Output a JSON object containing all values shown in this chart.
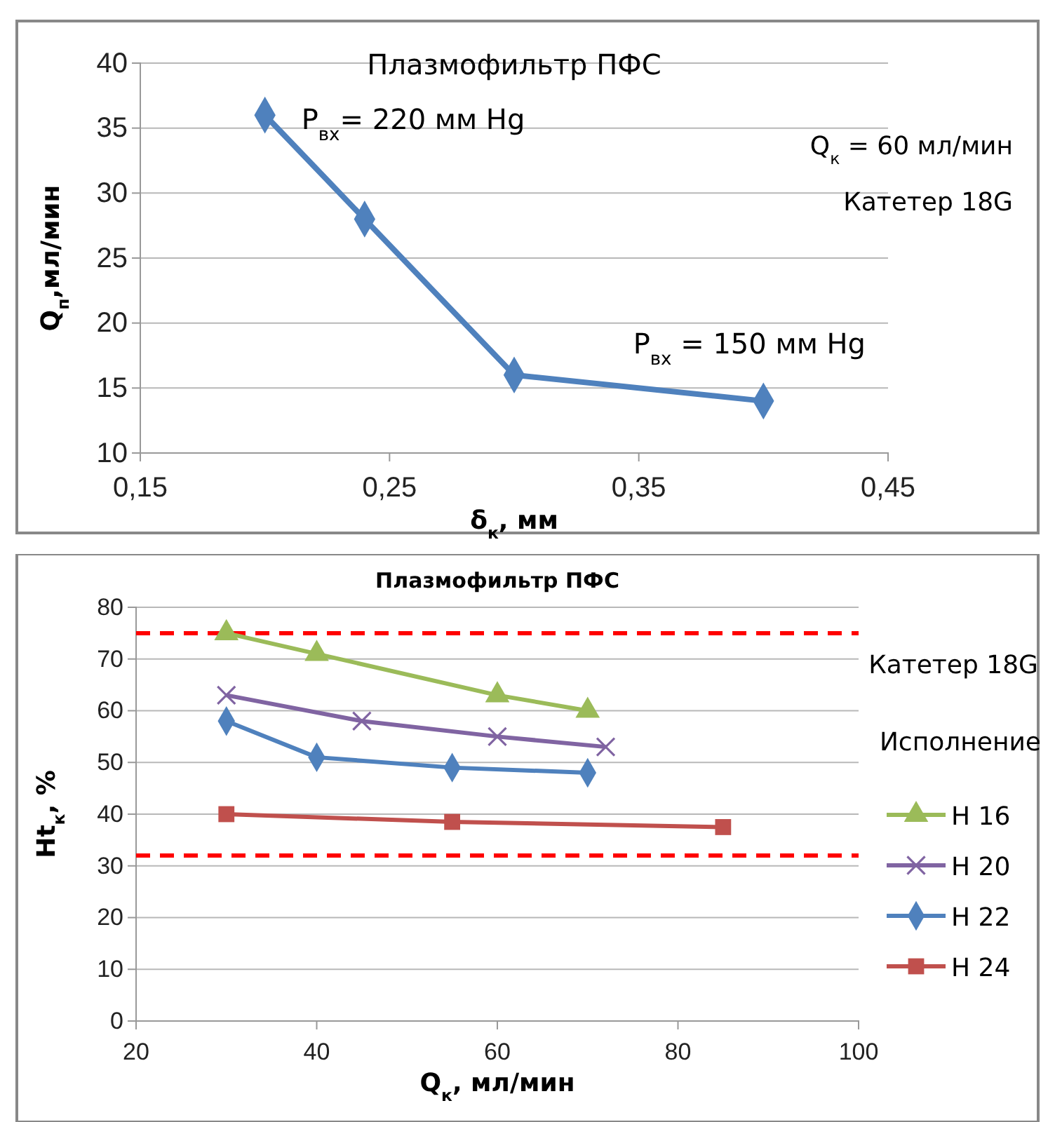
{
  "chart_data": [
    {
      "type": "line",
      "title": "Плазмофильтр ПФС",
      "xlabel": "δ$_{к}$, мм",
      "ylabel": "Q$_{п}$,мл/мин",
      "x": [
        0.2,
        0.24,
        0.3,
        0.4
      ],
      "series": [
        {
          "color": "#4f81bd",
          "values": [
            36,
            28,
            16,
            14
          ],
          "marker": "diamond"
        }
      ],
      "xlim": [
        0.15,
        0.45
      ],
      "xticks": [
        {
          "value": 0.15,
          "label": "0,15"
        },
        {
          "value": 0.25,
          "label": "0,25"
        },
        {
          "value": 0.35,
          "label": "0,35"
        },
        {
          "value": 0.45,
          "label": "0,45"
        }
      ],
      "ylim": [
        10,
        40
      ],
      "yticks": [
        10,
        15,
        20,
        25,
        30,
        35,
        40
      ],
      "grid": "y",
      "legend": false,
      "annotations": [
        {
          "text": "P$_{вх}$= 220 мм Hg",
          "x": 0.2,
          "y": 36
        },
        "Q$_{к}$ = 60 мл/мин",
        "Катетер 18G",
        {
          "text": "P$_{вх}$ = 150 мм Hg",
          "x": 0.4,
          "y": 14
        }
      ]
    },
    {
      "type": "line",
      "title": "Плазмофильтр ПФС",
      "xlabel": "Q$_{к}$, мл/мин",
      "ylabel": "Ht$_{к}$, %",
      "legend_title": "Исполнение",
      "series": [
        {
          "name": "Н 16",
          "color": "#9bbb59",
          "marker": "triangle",
          "x": [
            30,
            40,
            60,
            70
          ],
          "values": [
            75,
            71,
            63,
            60
          ]
        },
        {
          "name": "Н 20",
          "color": "#8064a2",
          "marker": "cross",
          "x": [
            30,
            45,
            60,
            72
          ],
          "values": [
            63,
            58,
            55,
            53
          ]
        },
        {
          "name": "Н 22",
          "color": "#4f81bd",
          "marker": "diamond",
          "x": [
            30,
            40,
            55,
            70
          ],
          "values": [
            58,
            51,
            49,
            48
          ]
        },
        {
          "name": "Н 24",
          "color": "#c0504d",
          "marker": "square",
          "x": [
            30,
            55,
            85
          ],
          "values": [
            40,
            38.5,
            37.5
          ]
        }
      ],
      "xlim": [
        20,
        100
      ],
      "xticks": [
        20,
        40,
        60,
        80,
        100
      ],
      "ylim": [
        0,
        80
      ],
      "yticks": [
        0,
        10,
        20,
        30,
        40,
        50,
        60,
        70,
        80
      ],
      "grid": "y",
      "legend": "right",
      "ref_lines": [
        {
          "axis": "y",
          "value": 75,
          "color": "#ff0000",
          "line_style": "dashed"
        },
        {
          "axis": "y",
          "value": 32,
          "color": "#ff0000",
          "line_style": "dashed"
        }
      ],
      "annotations": [
        "Катетер 18G"
      ]
    }
  ]
}
